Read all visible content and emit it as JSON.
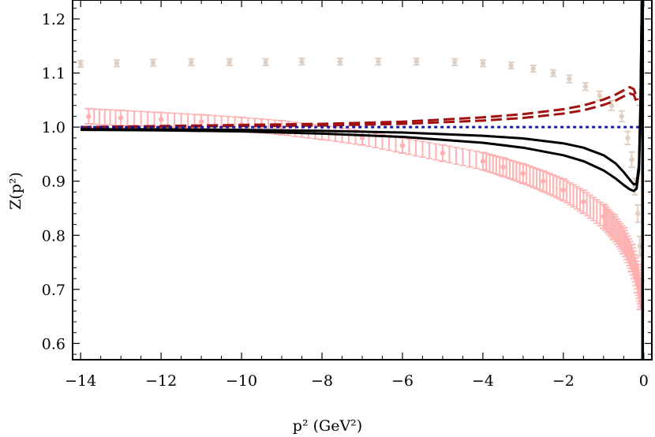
{
  "chart_data": {
    "type": "line",
    "title": "",
    "xlabel": "p² (GeV²)",
    "ylabel": "Z(p²)",
    "xlim": [
      -14.2,
      0.2
    ],
    "ylim": [
      0.57,
      1.235
    ],
    "x_ticks": [
      -14,
      -12,
      -10,
      -8,
      -6,
      -4,
      -2,
      0
    ],
    "x_tick_labels": [
      "−14",
      "−12",
      "−10",
      "−8",
      "−6",
      "−4",
      "−2",
      "0"
    ],
    "y_ticks": [
      0.6,
      0.7,
      0.8,
      0.9,
      1.0,
      1.1,
      1.2
    ],
    "y_tick_labels": [
      "0.6",
      "0.7",
      "0.8",
      "0.9",
      "1.0",
      "1.1",
      "1.2"
    ],
    "grid": false,
    "legend": "none",
    "series": [
      {
        "kind": "points-errorbars",
        "color": "#e0d0c4",
        "x": [
          -14.0,
          -13.1,
          -12.2,
          -11.25,
          -10.3,
          -9.4,
          -8.5,
          -7.55,
          -6.6,
          -5.65,
          -4.7,
          -4.0,
          -3.3,
          -2.75,
          -2.25,
          -1.85,
          -1.45,
          -1.1,
          -0.8,
          -0.55,
          -0.4,
          -0.3,
          -0.22,
          -0.15,
          -0.1
        ],
        "y": [
          1.117,
          1.118,
          1.119,
          1.12,
          1.12,
          1.12,
          1.121,
          1.121,
          1.121,
          1.121,
          1.12,
          1.118,
          1.114,
          1.108,
          1.1,
          1.089,
          1.075,
          1.058,
          1.04,
          1.02,
          0.98,
          0.94,
          0.89,
          0.84,
          0.78
        ],
        "err": [
          0.006,
          0.006,
          0.006,
          0.006,
          0.006,
          0.006,
          0.006,
          0.006,
          0.006,
          0.006,
          0.006,
          0.006,
          0.006,
          0.006,
          0.006,
          0.007,
          0.007,
          0.008,
          0.009,
          0.01,
          0.012,
          0.014,
          0.015,
          0.016,
          0.018
        ]
      },
      {
        "kind": "band-errorbars",
        "color": "#ffb0b0",
        "x": [
          -13.8,
          -13.0,
          -12.0,
          -11.0,
          -10.0,
          -9.0,
          -8.0,
          -7.0,
          -6.0,
          -5.0,
          -4.0,
          -3.5,
          -3.0,
          -2.5,
          -2.0,
          -1.5,
          -1.0,
          -0.75,
          -0.5,
          -0.3,
          -0.15,
          -0.08
        ],
        "y": [
          1.02,
          1.017,
          1.014,
          1.01,
          1.005,
          0.999,
          0.99,
          0.98,
          0.966,
          0.952,
          0.937,
          0.926,
          0.914,
          0.9,
          0.884,
          0.862,
          0.835,
          0.815,
          0.79,
          0.758,
          0.72,
          0.69
        ],
        "err": [
          0.014,
          0.014,
          0.013,
          0.013,
          0.013,
          0.013,
          0.013,
          0.013,
          0.014,
          0.015,
          0.016,
          0.017,
          0.018,
          0.019,
          0.02,
          0.021,
          0.022,
          0.023,
          0.024,
          0.025,
          0.026,
          0.027
        ]
      },
      {
        "kind": "dashed",
        "color": "#a31010",
        "x": [
          -14.0,
          -12.0,
          -10.0,
          -8.0,
          -6.0,
          -4.0,
          -3.0,
          -2.0,
          -1.5,
          -1.0,
          -0.7,
          -0.5,
          -0.35,
          -0.25,
          -0.15
        ],
        "y": [
          1.0,
          1.001,
          1.002,
          1.003,
          1.006,
          1.012,
          1.017,
          1.025,
          1.031,
          1.041,
          1.049,
          1.057,
          1.062,
          1.06,
          1.04
        ]
      },
      {
        "kind": "dashed",
        "color": "#a31010",
        "x": [
          -14.0,
          -12.0,
          -10.0,
          -8.0,
          -6.0,
          -4.0,
          -3.0,
          -2.0,
          -1.5,
          -1.0,
          -0.7,
          -0.5,
          -0.35,
          -0.25,
          -0.15
        ],
        "y": [
          1.0,
          1.002,
          1.004,
          1.006,
          1.01,
          1.018,
          1.024,
          1.033,
          1.04,
          1.051,
          1.06,
          1.068,
          1.074,
          1.07,
          1.05
        ]
      },
      {
        "kind": "dotted",
        "color": "#1a1a9a",
        "x": [
          -14.0,
          0.0
        ],
        "y": [
          1.0,
          1.0
        ]
      },
      {
        "kind": "solid",
        "color": "#000000",
        "x": [
          -14.0,
          -12.0,
          -10.0,
          -8.0,
          -6.0,
          -4.0,
          -3.0,
          -2.0,
          -1.5,
          -1.0,
          -0.7,
          -0.5,
          -0.35,
          -0.25,
          -0.18,
          -0.12,
          -0.08,
          -0.05
        ],
        "y": [
          0.996,
          0.996,
          0.995,
          0.993,
          0.99,
          0.984,
          0.979,
          0.97,
          0.962,
          0.948,
          0.933,
          0.917,
          0.903,
          0.894,
          0.895,
          0.93,
          1.05,
          1.235
        ]
      },
      {
        "kind": "solid",
        "color": "#000000",
        "x": [
          -14.0,
          -12.0,
          -10.0,
          -8.0,
          -6.0,
          -4.0,
          -3.0,
          -2.0,
          -1.5,
          -1.0,
          -0.7,
          -0.5,
          -0.35,
          -0.25,
          -0.18,
          -0.12,
          -0.08,
          -0.05
        ],
        "y": [
          0.995,
          0.994,
          0.992,
          0.988,
          0.982,
          0.971,
          0.962,
          0.948,
          0.937,
          0.92,
          0.905,
          0.893,
          0.885,
          0.882,
          0.886,
          0.92,
          1.04,
          1.235
        ]
      },
      {
        "kind": "vline",
        "color": "#000000",
        "x": [
          -0.03,
          -0.03
        ],
        "y": [
          0.57,
          1.235
        ]
      }
    ]
  }
}
